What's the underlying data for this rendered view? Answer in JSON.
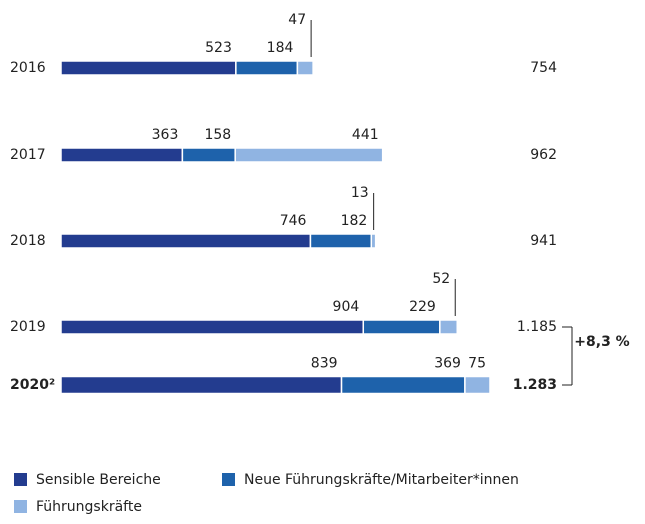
{
  "chart_data": {
    "type": "stacked-bar-horizontal",
    "categories": [
      "2016",
      "2017",
      "2018",
      "2019",
      "2020²"
    ],
    "series": [
      {
        "name": "Sensible Bereiche",
        "color": "#233c8f",
        "values": [
          523,
          363,
          746,
          904,
          839
        ]
      },
      {
        "name": "Neue Führungskräfte/Mitarbeiter*innen",
        "color": "#1e62ab",
        "values": [
          184,
          158,
          182,
          229,
          369
        ]
      },
      {
        "name": "Führungskräfte",
        "color": "#90b4e2",
        "values": [
          47,
          441,
          13,
          52,
          75
        ]
      }
    ],
    "totals": {
      "values": [
        754,
        962,
        941,
        1185,
        1283
      ],
      "value_labels": [
        "754",
        "962",
        "941",
        "1.185",
        "1.283"
      ]
    },
    "annotation": "+8,3 %"
  }
}
